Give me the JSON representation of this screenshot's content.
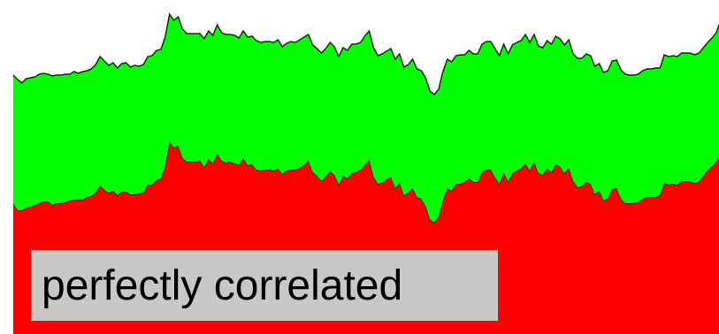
{
  "colors": {
    "background": "#ffffff",
    "top_series": "#00ff00",
    "bottom_series": "#ff0000",
    "outline": "#222222",
    "label_bg": "#c8c8c8"
  },
  "label": {
    "text": "perfectly correlated"
  },
  "chart_data": {
    "type": "area",
    "stacked": true,
    "grid": false,
    "legend": "none",
    "ylim": [
      0,
      378
    ],
    "x": [
      0,
      5,
      10,
      15,
      20,
      25,
      30,
      35,
      40,
      45,
      50,
      55,
      60,
      65,
      70,
      75,
      80,
      85,
      90,
      95,
      100,
      105,
      110,
      115,
      120,
      125,
      130,
      135,
      140,
      145,
      150,
      155,
      160,
      165,
      170,
      175,
      180,
      185,
      190,
      195,
      200,
      205,
      210,
      215,
      220,
      225,
      230,
      235,
      240,
      245,
      250,
      255,
      260,
      265,
      270,
      275,
      280,
      285,
      290,
      295,
      300,
      305,
      310,
      315,
      320,
      325,
      330,
      335,
      340,
      345,
      350,
      355,
      360,
      365,
      370,
      375,
      380,
      385,
      390,
      395,
      400,
      405,
      410,
      415,
      420,
      425,
      430,
      435,
      440,
      445,
      450,
      455,
      460,
      465,
      470,
      475,
      480,
      485,
      490,
      495,
      500,
      505,
      510,
      515,
      520,
      525,
      530,
      535,
      540,
      545,
      550,
      555,
      560,
      565,
      570,
      575,
      580,
      585,
      590,
      595,
      600,
      605,
      610,
      615,
      620,
      625,
      630,
      635,
      640,
      645,
      650,
      655,
      660,
      665,
      670,
      675,
      680,
      685,
      690,
      695,
      700,
      705,
      710,
      715,
      720,
      725,
      730,
      735,
      740,
      745,
      750,
      755,
      760,
      765,
      770,
      775,
      780,
      785,
      790,
      795,
      800,
      805,
      810,
      813
    ],
    "series": [
      {
        "color": "#ff0000",
        "values": [
          148,
          140,
          140,
          143,
          144,
          146,
          148,
          150,
          150,
          146,
          148,
          148,
          149,
          151,
          152,
          152,
          152,
          155,
          156,
          160,
          168,
          163,
          160,
          162,
          157,
          161,
          161,
          158,
          158,
          159,
          160,
          169,
          169,
          174,
          176,
          190,
          218,
          211,
          213,
          199,
          195,
          195,
          195,
          196,
          189,
          198,
          193,
          204,
          196,
          194,
          195,
          193,
          191,
          199,
          191,
          192,
          186,
          185,
          186,
          186,
          185,
          187,
          181,
          185,
          186,
          186,
          188,
          191,
          196,
          183,
          179,
          173,
          178,
          184,
          180,
          169,
          179,
          176,
          182,
          183,
          186,
          191,
          197,
          178,
          170,
          171,
          175,
          178,
          165,
          171,
          157,
          160,
          165,
          155,
          153,
          145,
          130,
          126,
          133,
          151,
          165,
          162,
          170,
          170,
          172,
          176,
          172,
          172,
          183,
          186,
          186,
          177,
          170,
          183,
          172,
          182,
          185,
          187,
          193,
          185,
          195,
          182,
          180,
          187,
          183,
          192,
          189,
          182,
          188,
          173,
          166,
          167,
          172,
          170,
          158,
          162,
          151,
          153,
          164,
          165,
          153,
          148,
          148,
          148,
          149,
          153,
          155,
          155,
          155,
          157,
          171,
          169,
          170,
          169,
          173,
          173,
          172,
          171,
          172,
          179,
          185,
          190,
          195,
          200
        ]
      },
      {
        "color": "#00ff00",
        "values": [
          145,
          148,
          144,
          146,
          146,
          145,
          146,
          145,
          144,
          146,
          145,
          145,
          145,
          143,
          145,
          143,
          145,
          143,
          144,
          145,
          146,
          146,
          144,
          145,
          144,
          145,
          146,
          144,
          146,
          144,
          145,
          145,
          146,
          147,
          146,
          146,
          144,
          144,
          146,
          146,
          145,
          145,
          145,
          144,
          145,
          145,
          145,
          146,
          145,
          145,
          144,
          145,
          144,
          144,
          145,
          145,
          146,
          145,
          145,
          145,
          145,
          146,
          144,
          144,
          145,
          144,
          145,
          145,
          143,
          144,
          144,
          145,
          145,
          146,
          145,
          145,
          145,
          145,
          146,
          145,
          144,
          146,
          146,
          146,
          145,
          146,
          145,
          145,
          146,
          146,
          145,
          145,
          146,
          145,
          145,
          145,
          145,
          145,
          144,
          146,
          146,
          146,
          145,
          146,
          144,
          145,
          145,
          145,
          145,
          145,
          145,
          146,
          145,
          145,
          145,
          145,
          145,
          145,
          146,
          145,
          144,
          144,
          144,
          145,
          145,
          145,
          145,
          145,
          145,
          144,
          146,
          145,
          145,
          145,
          145,
          144,
          145,
          145,
          145,
          145,
          146,
          146,
          145,
          145,
          145,
          145,
          145,
          145,
          146,
          144,
          145,
          145,
          145,
          145,
          145,
          145,
          146,
          145,
          146,
          145,
          145,
          145,
          146,
          150
        ]
      }
    ]
  }
}
